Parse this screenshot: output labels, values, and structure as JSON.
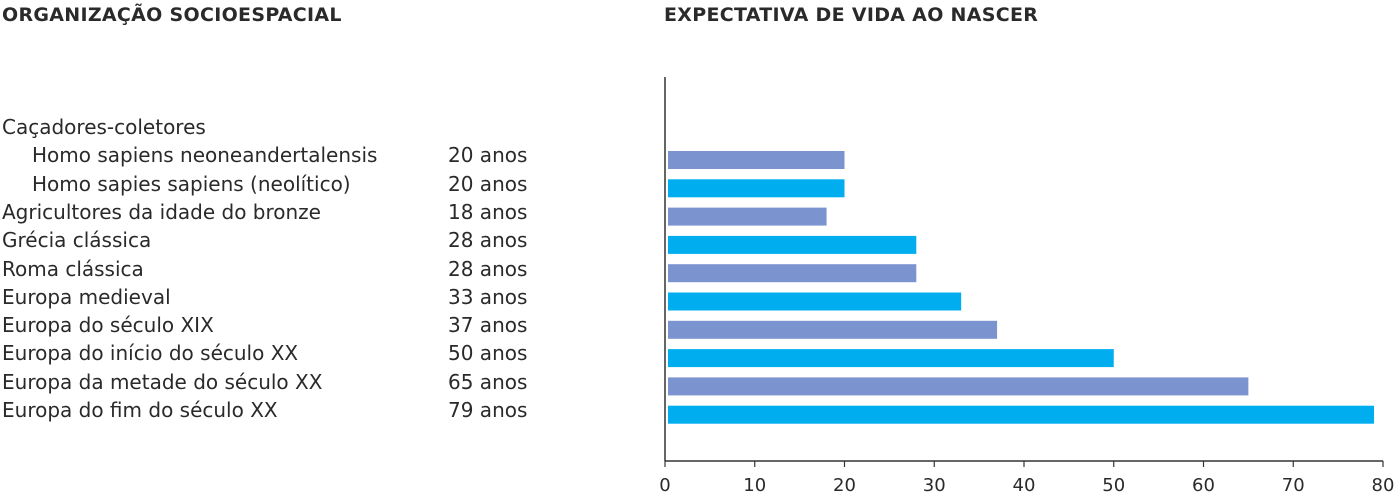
{
  "headings": {
    "left": "ORGANIZAÇÃO SOCIOESPACIAL",
    "right": "EXPECTATIVA DE VIDA AO NASCER"
  },
  "rows": [
    {
      "label": "Caçadores-coletores",
      "value_text": "",
      "indent": false
    },
    {
      "label": "Homo sapiens neoneandertalensis",
      "value_text": "20 anos",
      "indent": true
    },
    {
      "label": "Homo sapies sapiens (neolítico)",
      "value_text": "20 anos",
      "indent": true
    },
    {
      "label": "Agricultores da idade do bronze",
      "value_text": "18 anos",
      "indent": false
    },
    {
      "label": "Grécia clássica",
      "value_text": "28 anos",
      "indent": false
    },
    {
      "label": "Roma clássica",
      "value_text": "28 anos",
      "indent": false
    },
    {
      "label": "Europa medieval",
      "value_text": "33 anos",
      "indent": false
    },
    {
      "label": "Europa do século XIX",
      "value_text": "37 anos",
      "indent": false
    },
    {
      "label": "Europa do início do século XX",
      "value_text": "50 anos",
      "indent": false
    },
    {
      "label": "Europa da metade do século XX",
      "value_text": "65 anos",
      "indent": false
    },
    {
      "label": "Europa do fim do século XX",
      "value_text": "79 anos",
      "indent": false
    }
  ],
  "chart_data": {
    "type": "bar",
    "orientation": "horizontal",
    "title": "EXPECTATIVA DE VIDA AO NASCER",
    "categories": [
      "Homo sapiens neoneandertalensis",
      "Homo sapies sapiens (neolítico)",
      "Agricultores da idade do bronze",
      "Grécia clássica",
      "Roma clássica",
      "Europa medieval",
      "Europa do século XIX",
      "Europa do início do século XX",
      "Europa da metade do século XX",
      "Europa do fim do século XX"
    ],
    "values": [
      20,
      20,
      18,
      28,
      28,
      33,
      37,
      50,
      65,
      79
    ],
    "bar_colors": [
      "#7b93cf",
      "#00aeef",
      "#7b93cf",
      "#00aeef",
      "#7b93cf",
      "#00aeef",
      "#7b93cf",
      "#00aeef",
      "#7b93cf",
      "#00aeef"
    ],
    "xlim": [
      0,
      80
    ],
    "xticks": [
      0,
      10,
      20,
      30,
      40,
      50,
      60,
      70,
      80
    ],
    "grid": false,
    "axis_color": "#333333"
  }
}
